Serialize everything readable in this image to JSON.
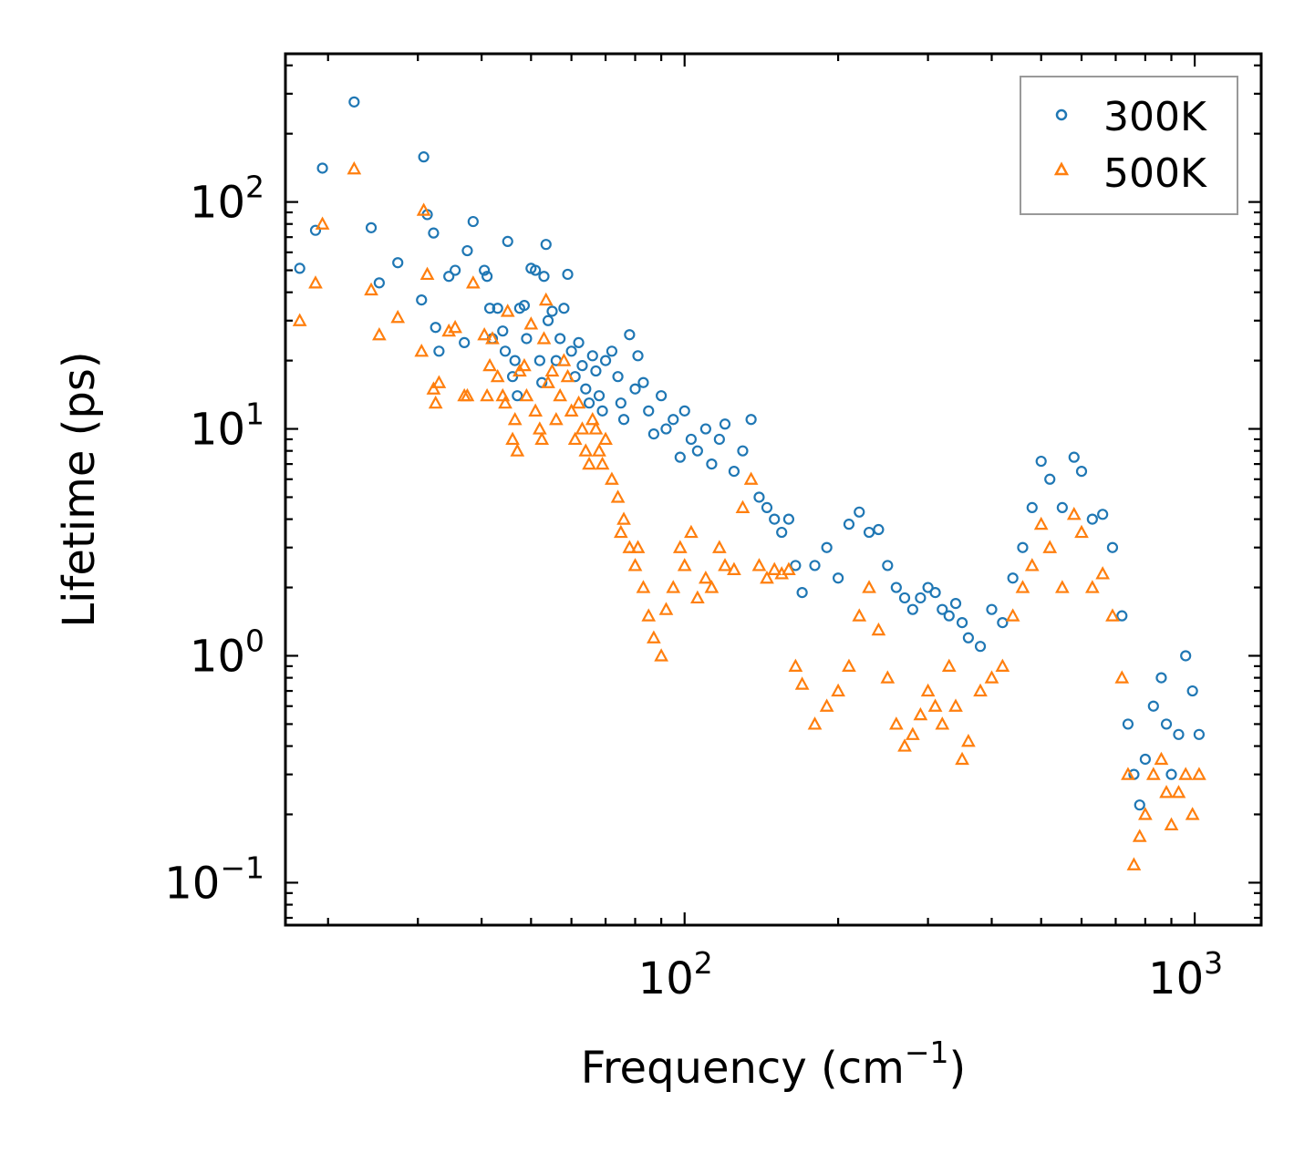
{
  "chart_data": {
    "type": "scatter",
    "title": "",
    "xlabel": "Frequency (cm",
    "xlabel_sup": "−1",
    "xlabel_end": ")",
    "ylabel": "Lifetime (ps)",
    "xscale": "log",
    "yscale": "log",
    "xlim": [
      16.5,
      1350
    ],
    "ylim": [
      0.065,
      450
    ],
    "x_ticks": [
      {
        "base": "10",
        "exp": "2",
        "value": 100
      },
      {
        "base": "10",
        "exp": "3",
        "value": 1000
      }
    ],
    "y_ticks": [
      {
        "base": "10",
        "exp": "−1",
        "value": 0.1
      },
      {
        "base": "10",
        "exp": "0",
        "value": 1
      },
      {
        "base": "10",
        "exp": "1",
        "value": 10
      },
      {
        "base": "10",
        "exp": "2",
        "value": 100
      }
    ],
    "legend_position": "top-right",
    "series": [
      {
        "name": "300K",
        "marker": "circle",
        "color": "#1f77b4",
        "points": [
          [
            17.6,
            51
          ],
          [
            18.9,
            75
          ],
          [
            19.5,
            141
          ],
          [
            22.5,
            276
          ],
          [
            24.3,
            77
          ],
          [
            25.2,
            44
          ],
          [
            27.4,
            54
          ],
          [
            30.5,
            37
          ],
          [
            30.8,
            158
          ],
          [
            31.3,
            88
          ],
          [
            32.2,
            73
          ],
          [
            32.5,
            28
          ],
          [
            33,
            22
          ],
          [
            34.5,
            47
          ],
          [
            35.5,
            50
          ],
          [
            37,
            24
          ],
          [
            37.5,
            61
          ],
          [
            38.5,
            82
          ],
          [
            40.5,
            50
          ],
          [
            41,
            47
          ],
          [
            41.5,
            34
          ],
          [
            42,
            25
          ],
          [
            43,
            34
          ],
          [
            44,
            27
          ],
          [
            44.5,
            22
          ],
          [
            45,
            67
          ],
          [
            46,
            17
          ],
          [
            46.5,
            20
          ],
          [
            47,
            14
          ],
          [
            47.5,
            34
          ],
          [
            48.5,
            35
          ],
          [
            49,
            25
          ],
          [
            50,
            51
          ],
          [
            51,
            50
          ],
          [
            52,
            20
          ],
          [
            52.5,
            16
          ],
          [
            53,
            47
          ],
          [
            53.5,
            65
          ],
          [
            54,
            30
          ],
          [
            55,
            33
          ],
          [
            56,
            20
          ],
          [
            57,
            25
          ],
          [
            58,
            34
          ],
          [
            59,
            48
          ],
          [
            60,
            22
          ],
          [
            61,
            17
          ],
          [
            62,
            24
          ],
          [
            63,
            19
          ],
          [
            64,
            15
          ],
          [
            65,
            13
          ],
          [
            66,
            21
          ],
          [
            67,
            18
          ],
          [
            68,
            14
          ],
          [
            69,
            12
          ],
          [
            70,
            20
          ],
          [
            72,
            22
          ],
          [
            74,
            17
          ],
          [
            75,
            13
          ],
          [
            76,
            11
          ],
          [
            78,
            26
          ],
          [
            80,
            15
          ],
          [
            81,
            21
          ],
          [
            83,
            16
          ],
          [
            85,
            12
          ],
          [
            87,
            9.5
          ],
          [
            90,
            14
          ],
          [
            92,
            10
          ],
          [
            95,
            11
          ],
          [
            98,
            7.5
          ],
          [
            100,
            12
          ],
          [
            103,
            9
          ],
          [
            106,
            8
          ],
          [
            110,
            10
          ],
          [
            113,
            7
          ],
          [
            117,
            9
          ],
          [
            120,
            10.5
          ],
          [
            125,
            6.5
          ],
          [
            130,
            8
          ],
          [
            135,
            11
          ],
          [
            140,
            5
          ],
          [
            145,
            4.5
          ],
          [
            150,
            4
          ],
          [
            155,
            3.5
          ],
          [
            160,
            4
          ],
          [
            165,
            2.5
          ],
          [
            170,
            1.9
          ],
          [
            180,
            2.5
          ],
          [
            190,
            3
          ],
          [
            200,
            2.2
          ],
          [
            210,
            3.8
          ],
          [
            220,
            4.3
          ],
          [
            230,
            3.5
          ],
          [
            240,
            3.6
          ],
          [
            250,
            2.5
          ],
          [
            260,
            2
          ],
          [
            270,
            1.8
          ],
          [
            280,
            1.6
          ],
          [
            290,
            1.8
          ],
          [
            300,
            2
          ],
          [
            310,
            1.9
          ],
          [
            320,
            1.6
          ],
          [
            330,
            1.5
          ],
          [
            340,
            1.7
          ],
          [
            350,
            1.4
          ],
          [
            360,
            1.2
          ],
          [
            380,
            1.1
          ],
          [
            400,
            1.6
          ],
          [
            420,
            1.4
          ],
          [
            440,
            2.2
          ],
          [
            460,
            3
          ],
          [
            480,
            4.5
          ],
          [
            500,
            7.2
          ],
          [
            520,
            6
          ],
          [
            550,
            4.5
          ],
          [
            580,
            7.5
          ],
          [
            600,
            6.5
          ],
          [
            630,
            4
          ],
          [
            660,
            4.2
          ],
          [
            690,
            3
          ],
          [
            720,
            1.5
          ],
          [
            740,
            0.5
          ],
          [
            760,
            0.3
          ],
          [
            780,
            0.22
          ],
          [
            800,
            0.35
          ],
          [
            830,
            0.6
          ],
          [
            860,
            0.8
          ],
          [
            880,
            0.5
          ],
          [
            900,
            0.3
          ],
          [
            930,
            0.45
          ],
          [
            960,
            1
          ],
          [
            990,
            0.7
          ],
          [
            1020,
            0.45
          ]
        ]
      },
      {
        "name": "500K",
        "marker": "triangle",
        "color": "#ff7f0e",
        "points": [
          [
            17.6,
            30
          ],
          [
            18.9,
            44
          ],
          [
            19.5,
            80
          ],
          [
            22.5,
            140
          ],
          [
            24.3,
            41
          ],
          [
            25.2,
            26
          ],
          [
            27.4,
            31
          ],
          [
            30.5,
            22
          ],
          [
            30.8,
            92
          ],
          [
            31.3,
            48
          ],
          [
            32.2,
            15
          ],
          [
            32.5,
            13
          ],
          [
            33,
            16
          ],
          [
            34.5,
            27
          ],
          [
            35.5,
            28
          ],
          [
            37,
            14
          ],
          [
            37.5,
            14
          ],
          [
            38.5,
            44
          ],
          [
            40.5,
            26
          ],
          [
            41,
            14
          ],
          [
            41.5,
            19
          ],
          [
            42,
            25
          ],
          [
            43,
            17
          ],
          [
            44,
            14
          ],
          [
            44.5,
            13
          ],
          [
            45,
            33
          ],
          [
            46,
            9
          ],
          [
            46.5,
            11
          ],
          [
            47,
            8
          ],
          [
            47.5,
            18
          ],
          [
            48.5,
            19
          ],
          [
            49,
            14
          ],
          [
            50,
            29
          ],
          [
            51,
            12
          ],
          [
            52,
            10
          ],
          [
            52.5,
            9
          ],
          [
            53,
            25
          ],
          [
            53.5,
            37
          ],
          [
            54,
            16
          ],
          [
            55,
            18
          ],
          [
            56,
            11
          ],
          [
            57,
            14
          ],
          [
            58,
            20
          ],
          [
            59,
            17
          ],
          [
            60,
            12
          ],
          [
            61,
            9
          ],
          [
            62,
            13
          ],
          [
            63,
            10
          ],
          [
            64,
            8
          ],
          [
            65,
            7
          ],
          [
            66,
            11
          ],
          [
            67,
            10
          ],
          [
            68,
            8
          ],
          [
            69,
            7
          ],
          [
            70,
            9
          ],
          [
            72,
            6
          ],
          [
            74,
            5
          ],
          [
            75,
            3.5
          ],
          [
            76,
            4
          ],
          [
            78,
            3
          ],
          [
            80,
            2.5
          ],
          [
            81,
            3
          ],
          [
            83,
            2
          ],
          [
            85,
            1.5
          ],
          [
            87,
            1.2
          ],
          [
            90,
            1
          ],
          [
            92,
            1.6
          ],
          [
            95,
            2
          ],
          [
            98,
            3
          ],
          [
            100,
            2.5
          ],
          [
            103,
            3.5
          ],
          [
            106,
            1.8
          ],
          [
            110,
            2.2
          ],
          [
            113,
            2
          ],
          [
            117,
            3
          ],
          [
            120,
            2.5
          ],
          [
            125,
            2.4
          ],
          [
            130,
            4.5
          ],
          [
            135,
            6
          ],
          [
            140,
            2.5
          ],
          [
            145,
            2.2
          ],
          [
            150,
            2.4
          ],
          [
            155,
            2.3
          ],
          [
            160,
            2.4
          ],
          [
            165,
            0.9
          ],
          [
            170,
            0.75
          ],
          [
            180,
            0.5
          ],
          [
            190,
            0.6
          ],
          [
            200,
            0.7
          ],
          [
            210,
            0.9
          ],
          [
            220,
            1.5
          ],
          [
            230,
            2
          ],
          [
            240,
            1.3
          ],
          [
            250,
            0.8
          ],
          [
            260,
            0.5
          ],
          [
            270,
            0.4
          ],
          [
            280,
            0.45
          ],
          [
            290,
            0.55
          ],
          [
            300,
            0.7
          ],
          [
            310,
            0.6
          ],
          [
            320,
            0.5
          ],
          [
            330,
            0.9
          ],
          [
            340,
            0.6
          ],
          [
            350,
            0.35
          ],
          [
            360,
            0.42
          ],
          [
            380,
            0.7
          ],
          [
            400,
            0.8
          ],
          [
            420,
            0.9
          ],
          [
            440,
            1.5
          ],
          [
            460,
            2
          ],
          [
            480,
            2.5
          ],
          [
            500,
            3.8
          ],
          [
            520,
            3
          ],
          [
            550,
            2
          ],
          [
            580,
            4.2
          ],
          [
            600,
            3.5
          ],
          [
            630,
            2
          ],
          [
            660,
            2.3
          ],
          [
            690,
            1.5
          ],
          [
            720,
            0.8
          ],
          [
            740,
            0.3
          ],
          [
            760,
            0.12
          ],
          [
            780,
            0.16
          ],
          [
            800,
            0.2
          ],
          [
            830,
            0.3
          ],
          [
            860,
            0.35
          ],
          [
            880,
            0.25
          ],
          [
            900,
            0.18
          ],
          [
            930,
            0.25
          ],
          [
            960,
            0.3
          ],
          [
            990,
            0.2
          ],
          [
            1020,
            0.3
          ]
        ]
      }
    ]
  }
}
